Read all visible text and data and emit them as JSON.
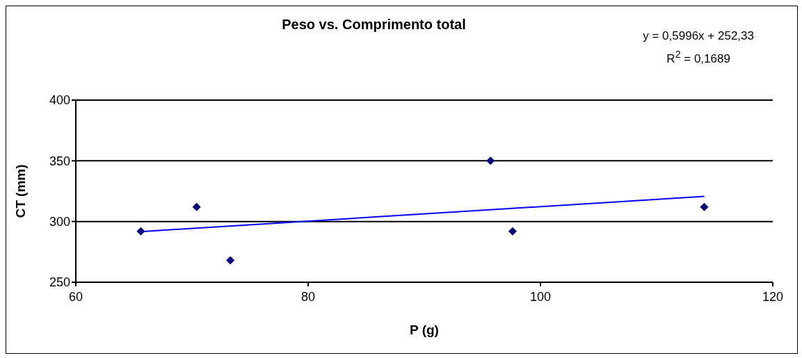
{
  "chart_data": {
    "type": "scatter",
    "title": "Peso vs. Comprimento total",
    "xlabel": "P (g)",
    "ylabel": "CT (mm)",
    "annotations": [
      "y = 0,5996x + 252,33",
      "R$^{2}$ = 0,1689"
    ],
    "series": [
      {
        "color": "#000080",
        "marker": "diamond",
        "x": [
          65.6,
          70.4,
          73.3,
          95.7,
          97.6,
          114.1
        ],
        "values": [
          292,
          312,
          268,
          350,
          292,
          312
        ]
      },
      {
        "type": "line",
        "marker": "none",
        "color": "#0000ff",
        "x": [
          65.6,
          114.1
        ],
        "values": [
          291.7,
          320.7
        ]
      }
    ],
    "xlim": [
      60,
      120
    ],
    "xticks": [
      60,
      80,
      100,
      120
    ],
    "ylim": [
      250,
      400
    ],
    "yticks": [
      250,
      300,
      350,
      400
    ],
    "grid": "y",
    "legend": false
  }
}
